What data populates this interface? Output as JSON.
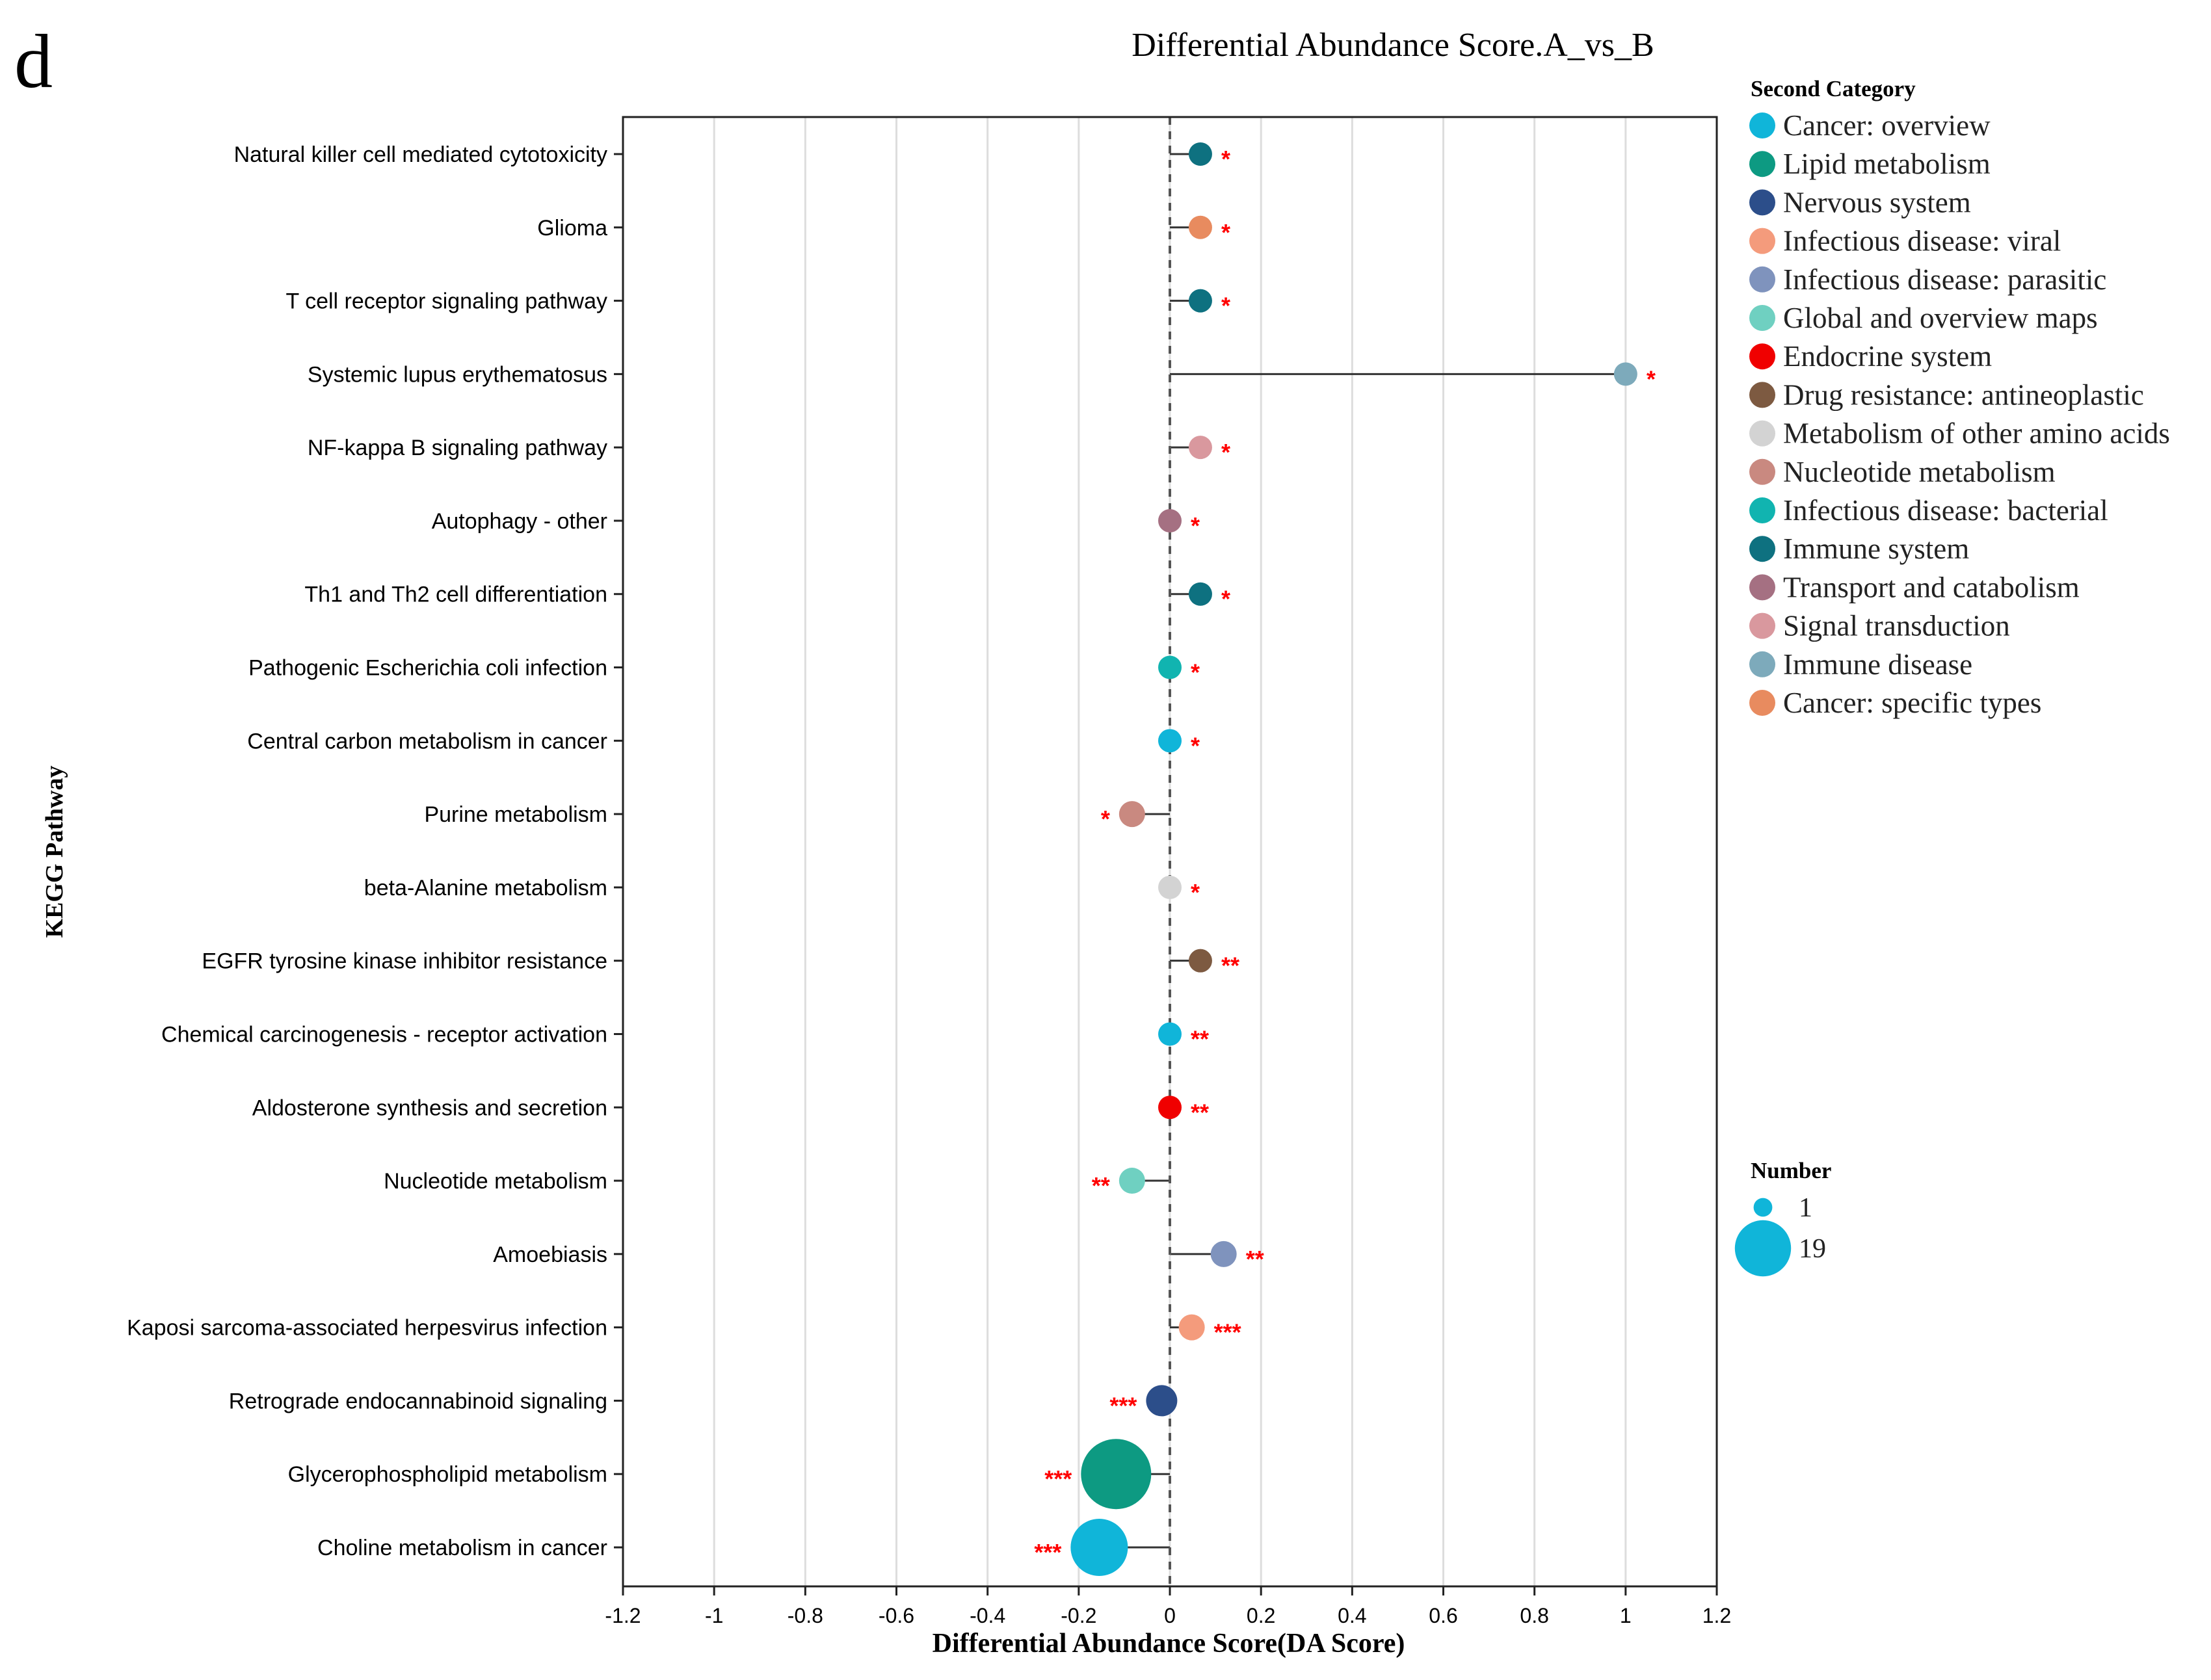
{
  "panel_label": "d",
  "chart_data": {
    "type": "scatter",
    "subtype": "lollipop",
    "title": "Differential Abundance Score.A_vs_B",
    "xlabel": "Differential Abundance Score(DA Score)",
    "ylabel": "KEGG Pathway",
    "xlim": [
      -1.2,
      1.2
    ],
    "xticks": [
      -1.2,
      -1,
      -0.8,
      -0.6,
      -0.4,
      -0.2,
      0,
      0.2,
      0.4,
      0.6,
      0.8,
      1,
      1.2
    ],
    "xtick_labels": [
      "-1.2",
      "-1",
      "-0.8",
      "-0.6",
      "-0.4",
      "-0.2",
      "0",
      "0.2",
      "0.4",
      "0.6",
      "0.8",
      "1",
      "1.2"
    ],
    "grid": "vertical",
    "reference_line": 0,
    "categories": [
      "Natural killer cell mediated cytotoxicity",
      "Glioma",
      "T cell receptor signaling pathway",
      "Systemic lupus erythematosus",
      "NF-kappa B signaling pathway",
      "Autophagy - other",
      "Th1 and Th2 cell differentiation",
      "Pathogenic Escherichia coli infection",
      "Central carbon metabolism in cancer",
      "Purine metabolism",
      "beta-Alanine metabolism",
      "EGFR tyrosine kinase inhibitor resistance",
      "Chemical carcinogenesis - receptor activation",
      "Aldosterone synthesis and secretion",
      "Nucleotide metabolism",
      "Amoebiasis",
      "Kaposi sarcoma-associated herpesvirus infection",
      "Retrograde endocannabinoid signaling",
      "Glycerophospholipid metabolism",
      "Choline metabolism in cancer"
    ],
    "points": [
      {
        "pathway": "Natural killer cell mediated cytotoxicity",
        "score": 0.067,
        "category": "Immune system",
        "number": 1,
        "sig": "*"
      },
      {
        "pathway": "Glioma",
        "score": 0.067,
        "category": "Cancer: specific types",
        "number": 1,
        "sig": "*"
      },
      {
        "pathway": "T cell receptor signaling pathway",
        "score": 0.067,
        "category": "Immune system",
        "number": 1,
        "sig": "*"
      },
      {
        "pathway": "Systemic lupus erythematosus",
        "score": 1.0,
        "category": "Immune disease",
        "number": 1,
        "sig": "*"
      },
      {
        "pathway": "NF-kappa B signaling pathway",
        "score": 0.067,
        "category": "Signal transduction",
        "number": 1,
        "sig": "*"
      },
      {
        "pathway": "Autophagy - other",
        "score": 0.0,
        "category": "Transport and catabolism",
        "number": 1,
        "sig": "*"
      },
      {
        "pathway": "Th1 and Th2 cell differentiation",
        "score": 0.067,
        "category": "Immune system",
        "number": 1,
        "sig": "*"
      },
      {
        "pathway": "Pathogenic Escherichia coli infection",
        "score": 0.0,
        "category": "Infectious disease: bacterial",
        "number": 1,
        "sig": "*"
      },
      {
        "pathway": "Central carbon metabolism in cancer",
        "score": 0.0,
        "category": "Cancer: overview",
        "number": 1,
        "sig": "*"
      },
      {
        "pathway": "Purine metabolism",
        "score": -0.083,
        "category": "Nucleotide metabolism",
        "number": 2,
        "sig": "*"
      },
      {
        "pathway": "beta-Alanine metabolism",
        "score": 0.0,
        "category": "Metabolism of other amino acids",
        "number": 1,
        "sig": "*"
      },
      {
        "pathway": "EGFR tyrosine kinase inhibitor resistance",
        "score": 0.067,
        "category": "Drug resistance: antineoplastic",
        "number": 1,
        "sig": "**"
      },
      {
        "pathway": "Chemical carcinogenesis - receptor activation",
        "score": 0.0,
        "category": "Cancer: overview",
        "number": 1,
        "sig": "**"
      },
      {
        "pathway": "Aldosterone synthesis and secretion",
        "score": 0.0,
        "category": "Endocrine system",
        "number": 1,
        "sig": "**"
      },
      {
        "pathway": "Nucleotide metabolism",
        "score": -0.083,
        "category": "Global and overview maps",
        "number": 2,
        "sig": "**"
      },
      {
        "pathway": "Amoebiasis",
        "score": 0.118,
        "category": "Infectious disease: parasitic",
        "number": 2,
        "sig": "**"
      },
      {
        "pathway": "Kaposi sarcoma-associated herpesvirus infection",
        "score": 0.048,
        "category": "Infectious disease: viral",
        "number": 2,
        "sig": "***"
      },
      {
        "pathway": "Retrograde endocannabinoid signaling",
        "score": -0.018,
        "category": "Nervous system",
        "number": 4,
        "sig": "***"
      },
      {
        "pathway": "Glycerophospholipid metabolism",
        "score": -0.118,
        "category": "Lipid metabolism",
        "number": 19,
        "sig": "***"
      },
      {
        "pathway": "Choline metabolism in cancer",
        "score": -0.155,
        "category": "Cancer: overview",
        "number": 14,
        "sig": "***"
      }
    ],
    "legend_category": {
      "title": "Second Category",
      "items": [
        {
          "label": "Cancer: overview",
          "color": "#10b5d9"
        },
        {
          "label": "Lipid metabolism",
          "color": "#0d9a82"
        },
        {
          "label": "Nervous system",
          "color": "#2c4e8a"
        },
        {
          "label": "Infectious disease: viral",
          "color": "#f49b7c"
        },
        {
          "label": "Infectious disease: parasitic",
          "color": "#7f93bd"
        },
        {
          "label": "Global and overview maps",
          "color": "#6fd0c1"
        },
        {
          "label": "Endocrine system",
          "color": "#f00000"
        },
        {
          "label": "Drug resistance: antineoplastic",
          "color": "#7d5a41"
        },
        {
          "label": "Metabolism of other amino acids",
          "color": "#d3d3d3"
        },
        {
          "label": "Nucleotide metabolism",
          "color": "#c98980"
        },
        {
          "label": "Infectious disease: bacterial",
          "color": "#11b4b0"
        },
        {
          "label": "Immune system",
          "color": "#0e7180"
        },
        {
          "label": "Transport and catabolism",
          "color": "#a57082"
        },
        {
          "label": "Signal transduction",
          "color": "#d9989e"
        },
        {
          "label": "Immune disease",
          "color": "#7daabb"
        },
        {
          "label": "Cancer: specific types",
          "color": "#e88b5f"
        }
      ]
    },
    "legend_size": {
      "title": "Number",
      "items": [
        {
          "label": "1",
          "value": 1
        },
        {
          "label": "19",
          "value": 19
        }
      ],
      "color": "#10b5d9"
    },
    "sig_color": "#ff0000"
  }
}
